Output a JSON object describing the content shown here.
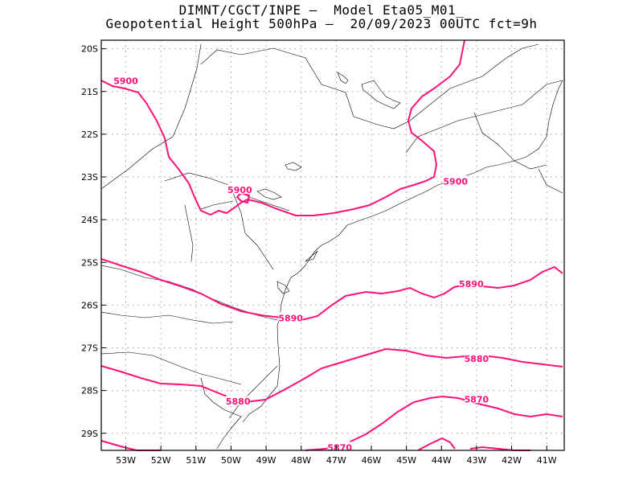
{
  "title": {
    "line1": "DIMNT/CGCT/INPE –  Model Eta05_M01_",
    "line2": "Geopotential Height 500hPa –  20/09/2023 00UTC fct=9h"
  },
  "colors": {
    "contour": "#ff1177",
    "coast": "#000000",
    "grid": "#999999"
  },
  "axes": {
    "lon_range": [
      -53.7,
      -40.5
    ],
    "lat_range": [
      -29.4,
      -19.8
    ],
    "lon_ticks": [
      "53W",
      "52W",
      "51W",
      "50W",
      "49W",
      "48W",
      "47W",
      "46W",
      "45W",
      "44W",
      "43W",
      "42W",
      "41W"
    ],
    "lat_ticks": [
      "20S",
      "21S",
      "22S",
      "23S",
      "24S",
      "25S",
      "26S",
      "27S",
      "28S",
      "29S"
    ]
  },
  "contour_labels": [
    {
      "text": "5900",
      "lon": -53.0,
      "lat": -20.75
    },
    {
      "text": "5900",
      "lon": -49.75,
      "lat": -23.3
    },
    {
      "text": "5900",
      "lon": -43.6,
      "lat": -23.1
    },
    {
      "text": "5890",
      "lon": -43.15,
      "lat": -25.5
    },
    {
      "text": "5890",
      "lon": -48.3,
      "lat": -26.3
    },
    {
      "text": "5880",
      "lon": -43.0,
      "lat": -27.25
    },
    {
      "text": "5880",
      "lon": -49.8,
      "lat": -28.25
    },
    {
      "text": "5870",
      "lon": -43.0,
      "lat": -28.2
    },
    {
      "text": "5870",
      "lon": -46.9,
      "lat": -29.33
    }
  ]
}
